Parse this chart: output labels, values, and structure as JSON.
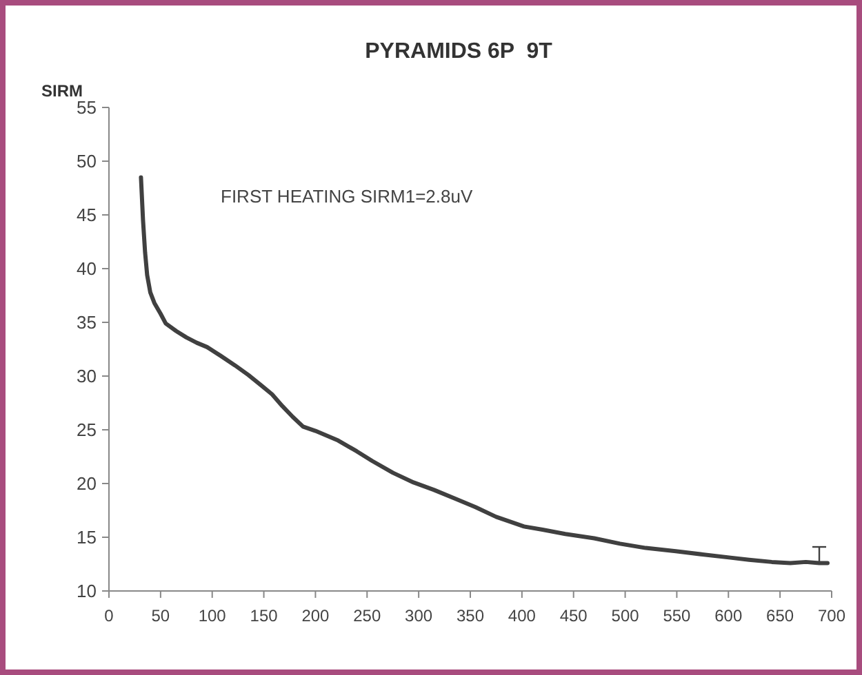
{
  "chart_data": {
    "type": "line",
    "title": "PYRAMIDS 6P  9T",
    "ylabel": "SIRM",
    "annotations": [
      "FIRST HEATING SIRM1=2.8uV"
    ],
    "x": [
      31,
      33,
      35,
      37,
      40,
      44,
      50,
      55,
      65,
      75,
      85,
      95,
      108,
      122,
      135,
      148,
      158,
      168,
      178,
      188,
      200,
      222,
      240,
      255,
      275,
      295,
      315,
      335,
      355,
      375,
      390,
      402,
      420,
      442,
      470,
      495,
      520,
      549,
      575,
      602,
      620,
      642,
      660,
      675,
      688,
      696
    ],
    "series": [
      {
        "color": "#404040",
        "values": [
          48.5,
          44.5,
          41.5,
          39.4,
          37.8,
          36.8,
          35.8,
          34.9,
          34.2,
          33.6,
          33.1,
          32.7,
          31.9,
          31,
          30.1,
          29.1,
          28.3,
          27.2,
          26.2,
          25.3,
          24.9,
          24,
          23,
          22.1,
          21,
          20.1,
          19.4,
          18.6,
          17.8,
          16.9,
          16.4,
          16,
          15.7,
          15.3,
          14.9,
          14.4,
          14,
          13.7,
          13.4,
          13.1,
          12.9,
          12.7,
          12.6,
          12.7,
          12.6,
          12.6
        ],
        "errors": [
          null,
          null,
          null,
          null,
          null,
          null,
          null,
          null,
          null,
          null,
          null,
          null,
          null,
          null,
          null,
          null,
          null,
          null,
          null,
          null,
          null,
          null,
          null,
          null,
          null,
          null,
          null,
          null,
          null,
          null,
          null,
          null,
          null,
          null,
          null,
          null,
          null,
          null,
          null,
          null,
          null,
          null,
          null,
          null,
          [
            12.6,
            14.1
          ],
          null
        ]
      }
    ],
    "xlim": [
      0,
      700
    ],
    "xticks": [
      0,
      50,
      100,
      150,
      200,
      250,
      300,
      350,
      400,
      450,
      500,
      550,
      600,
      650,
      700
    ],
    "ylim": [
      10,
      55
    ],
    "yticks": [
      10,
      15,
      20,
      25,
      30,
      35,
      40,
      45,
      50,
      55
    ],
    "grid": false,
    "marker": "none",
    "line_style": "solid"
  }
}
